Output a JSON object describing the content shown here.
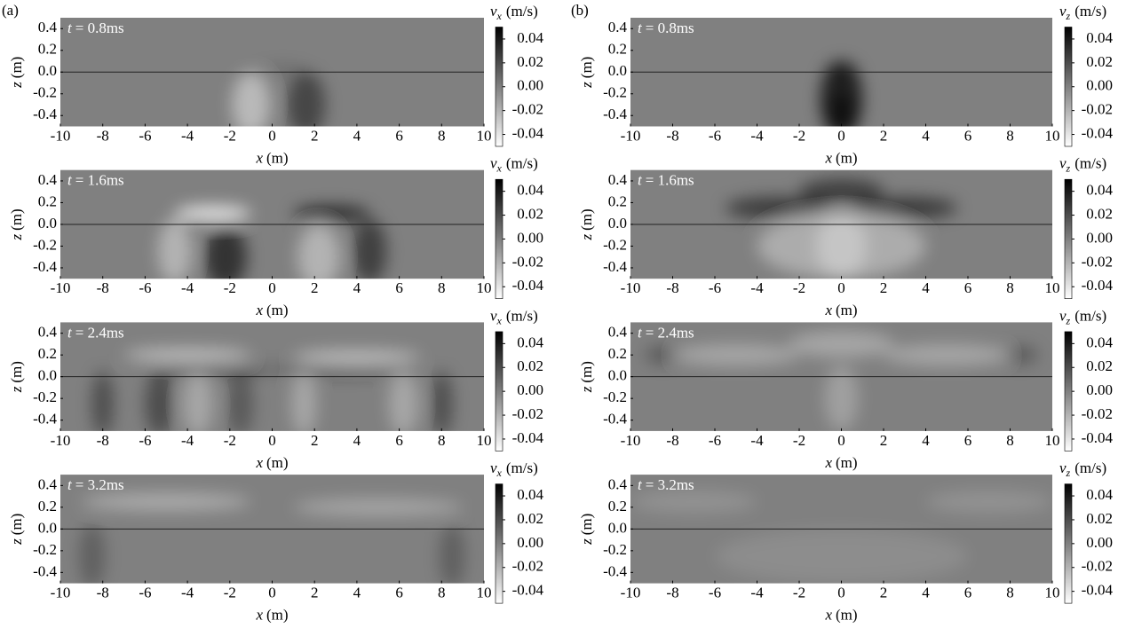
{
  "chart_data": [
    {
      "type": "heatmap",
      "panel_label": "(a)",
      "annotation_symbol": "t",
      "annotation": "= 0.8ms",
      "xlabel_symbol": "x",
      "xlabel_unit": "(m)",
      "ylabel_symbol": "z",
      "ylabel_unit": "(m)",
      "colorbar_symbol": "v",
      "colorbar_subscript": "x",
      "colorbar_unit": "(m/s)",
      "xlim": [
        -10,
        10
      ],
      "ylim": [
        -0.5,
        0.5
      ],
      "xticks": [
        -10,
        -8,
        -6,
        -4,
        -2,
        0,
        2,
        4,
        6,
        8,
        10
      ],
      "yticks": [
        0.4,
        0.2,
        {
          "value": 0,
          "label": "0.0"
        },
        -0.2,
        -0.4
      ],
      "clim": [
        -0.05,
        0.05
      ],
      "cticks": [
        0.04,
        0.02,
        {
          "value": 0,
          "label": "0.00"
        },
        -0.02,
        -0.04
      ]
    },
    {
      "type": "heatmap",
      "annotation_symbol": "t",
      "annotation": "= 1.6ms",
      "xlabel_symbol": "x",
      "xlabel_unit": "(m)",
      "ylabel_symbol": "z",
      "ylabel_unit": "(m)",
      "colorbar_symbol": "v",
      "colorbar_subscript": "x",
      "colorbar_unit": "(m/s)",
      "xlim": [
        -10,
        10
      ],
      "ylim": [
        -0.5,
        0.5
      ],
      "xticks": [
        -10,
        -8,
        -6,
        -4,
        -2,
        0,
        2,
        4,
        6,
        8,
        10
      ],
      "yticks": [
        0.4,
        0.2,
        {
          "value": 0,
          "label": "0.0"
        },
        -0.2,
        -0.4
      ],
      "clim": [
        -0.05,
        0.05
      ],
      "cticks": [
        0.04,
        0.02,
        {
          "value": 0,
          "label": "0.00"
        },
        -0.02,
        -0.04
      ]
    },
    {
      "type": "heatmap",
      "annotation_symbol": "t",
      "annotation": "= 2.4ms",
      "xlabel_symbol": "x",
      "xlabel_unit": "(m)",
      "ylabel_symbol": "z",
      "ylabel_unit": "(m)",
      "colorbar_symbol": "v",
      "colorbar_subscript": "x",
      "colorbar_unit": "(m/s)",
      "xlim": [
        -10,
        10
      ],
      "ylim": [
        -0.5,
        0.5
      ],
      "xticks": [
        -10,
        -8,
        -6,
        -4,
        -2,
        0,
        2,
        4,
        6,
        8,
        10
      ],
      "yticks": [
        0.4,
        0.2,
        {
          "value": 0,
          "label": "0.0"
        },
        -0.2,
        -0.4
      ],
      "clim": [
        -0.05,
        0.05
      ],
      "cticks": [
        0.04,
        0.02,
        {
          "value": 0,
          "label": "0.00"
        },
        -0.02,
        -0.04
      ]
    },
    {
      "type": "heatmap",
      "annotation_symbol": "t",
      "annotation": "= 3.2ms",
      "xlabel_symbol": "x",
      "xlabel_unit": "(m)",
      "ylabel_symbol": "z",
      "ylabel_unit": "(m)",
      "colorbar_symbol": "v",
      "colorbar_subscript": "x",
      "colorbar_unit": "(m/s)",
      "xlim": [
        -10,
        10
      ],
      "ylim": [
        -0.5,
        0.5
      ],
      "xticks": [
        -10,
        -8,
        -6,
        -4,
        -2,
        0,
        2,
        4,
        6,
        8,
        10
      ],
      "yticks": [
        0.4,
        0.2,
        {
          "value": 0,
          "label": "0.0"
        },
        -0.2,
        -0.4
      ],
      "clim": [
        -0.05,
        0.05
      ],
      "cticks": [
        0.04,
        0.02,
        {
          "value": 0,
          "label": "0.00"
        },
        -0.02,
        -0.04
      ]
    },
    {
      "type": "heatmap",
      "panel_label": "(b)",
      "annotation_symbol": "t",
      "annotation": "= 0.8ms",
      "xlabel_symbol": "x",
      "xlabel_unit": "(m)",
      "ylabel_symbol": "z",
      "ylabel_unit": "(m)",
      "colorbar_symbol": "v",
      "colorbar_subscript": "z",
      "colorbar_unit": "(m/s)",
      "xlim": [
        -10,
        10
      ],
      "ylim": [
        -0.5,
        0.5
      ],
      "xticks": [
        -10,
        -8,
        -6,
        -4,
        -2,
        0,
        2,
        4,
        6,
        8,
        10
      ],
      "yticks": [
        0.4,
        0.2,
        {
          "value": 0,
          "label": "0.0"
        },
        -0.2,
        -0.4
      ],
      "clim": [
        -0.05,
        0.05
      ],
      "cticks": [
        0.04,
        0.02,
        {
          "value": 0,
          "label": "0.00"
        },
        -0.02,
        -0.04
      ]
    },
    {
      "type": "heatmap",
      "annotation_symbol": "t",
      "annotation": "= 1.6ms",
      "xlabel_symbol": "x",
      "xlabel_unit": "(m)",
      "ylabel_symbol": "z",
      "ylabel_unit": "(m)",
      "colorbar_symbol": "v",
      "colorbar_subscript": "z",
      "colorbar_unit": "(m/s)",
      "xlim": [
        -10,
        10
      ],
      "ylim": [
        -0.5,
        0.5
      ],
      "xticks": [
        -10,
        -8,
        -6,
        -4,
        -2,
        0,
        2,
        4,
        6,
        8,
        10
      ],
      "yticks": [
        0.4,
        0.2,
        {
          "value": 0,
          "label": "0.0"
        },
        -0.2,
        -0.4
      ],
      "clim": [
        -0.05,
        0.05
      ],
      "cticks": [
        0.04,
        0.02,
        {
          "value": 0,
          "label": "0.00"
        },
        -0.02,
        -0.04
      ]
    },
    {
      "type": "heatmap",
      "annotation_symbol": "t",
      "annotation": "= 2.4ms",
      "xlabel_symbol": "x",
      "xlabel_unit": "(m)",
      "ylabel_symbol": "z",
      "ylabel_unit": "(m)",
      "colorbar_symbol": "v",
      "colorbar_subscript": "z",
      "colorbar_unit": "(m/s)",
      "xlim": [
        -10,
        10
      ],
      "ylim": [
        -0.5,
        0.5
      ],
      "xticks": [
        -10,
        -8,
        -6,
        -4,
        -2,
        0,
        2,
        4,
        6,
        8,
        10
      ],
      "yticks": [
        0.4,
        0.2,
        {
          "value": 0,
          "label": "0.0"
        },
        -0.2,
        -0.4
      ],
      "clim": [
        -0.05,
        0.05
      ],
      "cticks": [
        0.04,
        0.02,
        {
          "value": 0,
          "label": "0.00"
        },
        -0.02,
        -0.04
      ]
    },
    {
      "type": "heatmap",
      "annotation_symbol": "t",
      "annotation": "= 3.2ms",
      "xlabel_symbol": "x",
      "xlabel_unit": "(m)",
      "ylabel_symbol": "z",
      "ylabel_unit": "(m)",
      "colorbar_symbol": "v",
      "colorbar_subscript": "z",
      "colorbar_unit": "(m/s)",
      "xlim": [
        -10,
        10
      ],
      "ylim": [
        -0.5,
        0.5
      ],
      "xticks": [
        -10,
        -8,
        -6,
        -4,
        -2,
        0,
        2,
        4,
        6,
        8,
        10
      ],
      "yticks": [
        0.4,
        0.2,
        {
          "value": 0,
          "label": "0.0"
        },
        -0.2,
        -0.4
      ],
      "clim": [
        -0.05,
        0.05
      ],
      "cticks": [
        0.04,
        0.02,
        {
          "value": 0,
          "label": "0.00"
        },
        -0.02,
        -0.04
      ]
    }
  ]
}
